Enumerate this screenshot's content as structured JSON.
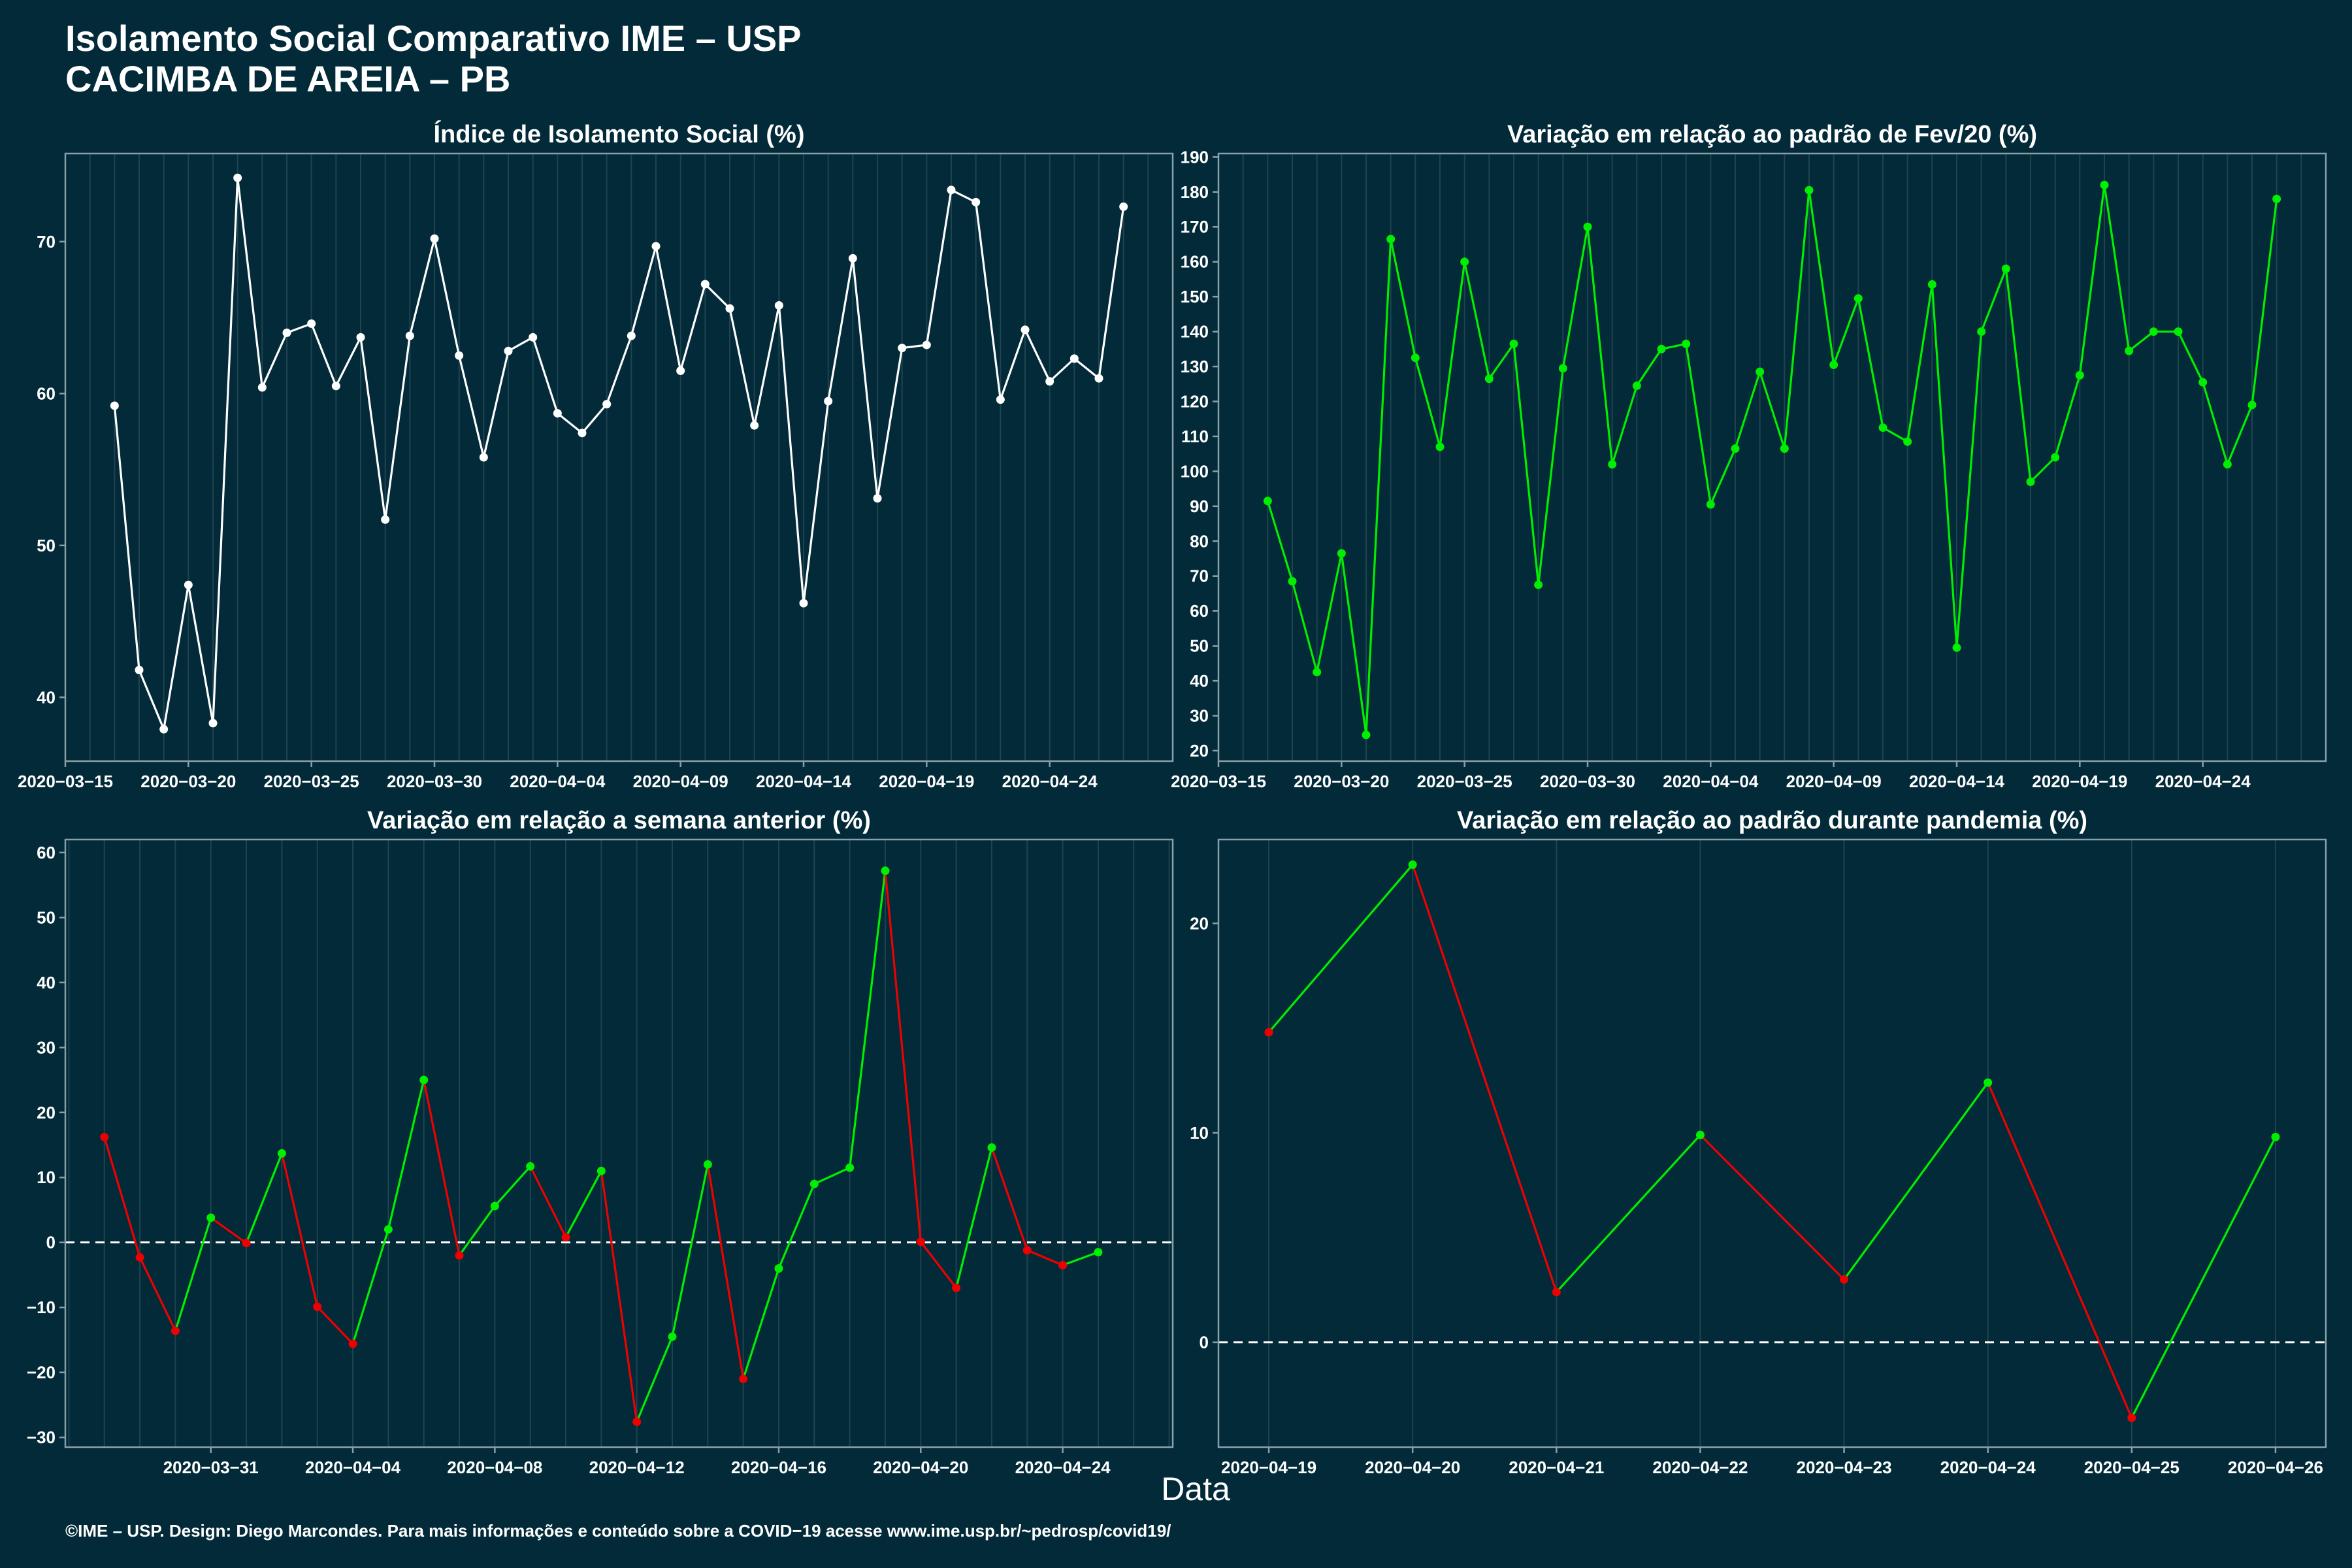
{
  "title_line1": "Isolamento Social Comparativo IME – USP",
  "title_line2": "CACIMBA DE AREIA – PB",
  "x_axis_title": "Data",
  "footer": "©IME – USP. Design: Diego Marcondes. Para mais informações e conteúdo sobre a COVID−19 acesse www.ime.usp.br/~pedrosp/covid19/",
  "colors": {
    "background": "#022a38",
    "panel_border": "#8aa0a8",
    "gridline": "#1f4450",
    "white_series": "#ffffff",
    "positive": "#00ee00",
    "negative": "#ee0000",
    "zero_line": "#ffffff"
  },
  "chart_data": [
    {
      "type": "line",
      "title": "Índice de Isolamento Social (%)",
      "color_mode": "single",
      "x_start": "2020-03-17",
      "ylim": [
        35.8,
        75.8
      ],
      "yticks": [
        40,
        50,
        60,
        70
      ],
      "xticks": [
        "2020−03−15",
        "2020−03−20",
        "2020−03−25",
        "2020−03−30",
        "2020−04−04",
        "2020−04−09",
        "2020−04−14",
        "2020−04−19",
        "2020−04−24"
      ],
      "xtick_days": [
        -2,
        3,
        8,
        13,
        18,
        23,
        28,
        33,
        38
      ],
      "xlim_days": [
        -2,
        43
      ],
      "values": [
        59.2,
        41.8,
        37.9,
        47.4,
        38.3,
        74.2,
        60.4,
        64.0,
        64.6,
        60.5,
        63.7,
        51.7,
        63.8,
        70.2,
        62.5,
        55.8,
        62.8,
        63.7,
        58.7,
        57.4,
        59.3,
        63.8,
        69.7,
        61.5,
        67.2,
        65.6,
        57.9,
        65.8,
        46.2,
        59.5,
        68.9,
        53.1,
        63.0,
        63.2,
        73.4,
        72.6,
        59.6,
        64.2,
        60.8,
        62.3,
        61.0,
        72.3
      ]
    },
    {
      "type": "line",
      "title": "Variação em relação ao padrão de Fev/20 (%)",
      "color_mode": "single_green",
      "x_start": "2020-03-17",
      "ylim": [
        17,
        191
      ],
      "yticks": [
        20,
        30,
        40,
        50,
        60,
        70,
        80,
        90,
        100,
        110,
        120,
        130,
        140,
        150,
        160,
        170,
        180,
        190
      ],
      "xticks": [
        "2020−03−15",
        "2020−03−20",
        "2020−03−25",
        "2020−03−30",
        "2020−04−04",
        "2020−04−09",
        "2020−04−14",
        "2020−04−19",
        "2020−04−24"
      ],
      "xtick_days": [
        -2,
        3,
        8,
        13,
        18,
        23,
        28,
        33,
        38
      ],
      "xlim_days": [
        -2,
        43
      ],
      "values": [
        91.5,
        68.5,
        42.5,
        76.5,
        24.5,
        166.5,
        132.5,
        107.0,
        160.0,
        126.5,
        136.5,
        67.5,
        129.5,
        170.0,
        102.0,
        124.5,
        135.0,
        136.5,
        90.5,
        106.5,
        128.5,
        106.5,
        180.5,
        130.5,
        149.5,
        112.5,
        108.5,
        153.5,
        49.5,
        140.0,
        158.0,
        97.0,
        104.0,
        127.5,
        182.0,
        134.5,
        140.0,
        140.0,
        125.5,
        102.0,
        119.0,
        178.0
      ]
    },
    {
      "type": "line",
      "title": "Variação em relação a semana anterior (%)",
      "color_mode": "trend",
      "x_start": "2020-03-28",
      "ylim": [
        -31.5,
        62
      ],
      "yticks": [
        -30,
        -20,
        -10,
        0,
        10,
        20,
        30,
        40,
        50,
        60
      ],
      "xticks": [
        "2020−03−31",
        "2020−04−04",
        "2020−04−08",
        "2020−04−12",
        "2020−04−16",
        "2020−04−20",
        "2020−04−24"
      ],
      "xtick_days": [
        3,
        7,
        11,
        15,
        19,
        23,
        27
      ],
      "xlim_days": [
        -1.1,
        30.1
      ],
      "zero_line": true,
      "values": [
        16.2,
        -2.3,
        -13.6,
        3.8,
        -0.1,
        13.7,
        -9.9,
        -15.6,
        2.0,
        25.0,
        -2.0,
        5.6,
        11.7,
        0.8,
        11.0,
        -27.6,
        -14.5,
        12.0,
        -21.0,
        -4.0,
        9.0,
        11.5,
        57.2,
        0.1,
        -7.0,
        14.6,
        -1.2,
        -3.5,
        -1.5
      ]
    },
    {
      "type": "line",
      "title": "Variação em relação ao padrão durante pandemia (%)",
      "color_mode": "trend",
      "x_start": "2020-04-19",
      "ylim": [
        -5,
        24
      ],
      "yticks": [
        0,
        10,
        20
      ],
      "xticks": [
        "2020−04−19",
        "2020−04−20",
        "2020−04−21",
        "2020−04−22",
        "2020−04−23",
        "2020−04−24",
        "2020−04−25",
        "2020−04−26"
      ],
      "xtick_days": [
        0,
        1,
        2,
        3,
        4,
        5,
        6,
        7
      ],
      "xlim_days": [
        -0.35,
        7.35
      ],
      "zero_line": true,
      "values": [
        14.8,
        22.8,
        2.4,
        9.9,
        3.0,
        12.4,
        -3.6,
        9.8
      ]
    }
  ]
}
